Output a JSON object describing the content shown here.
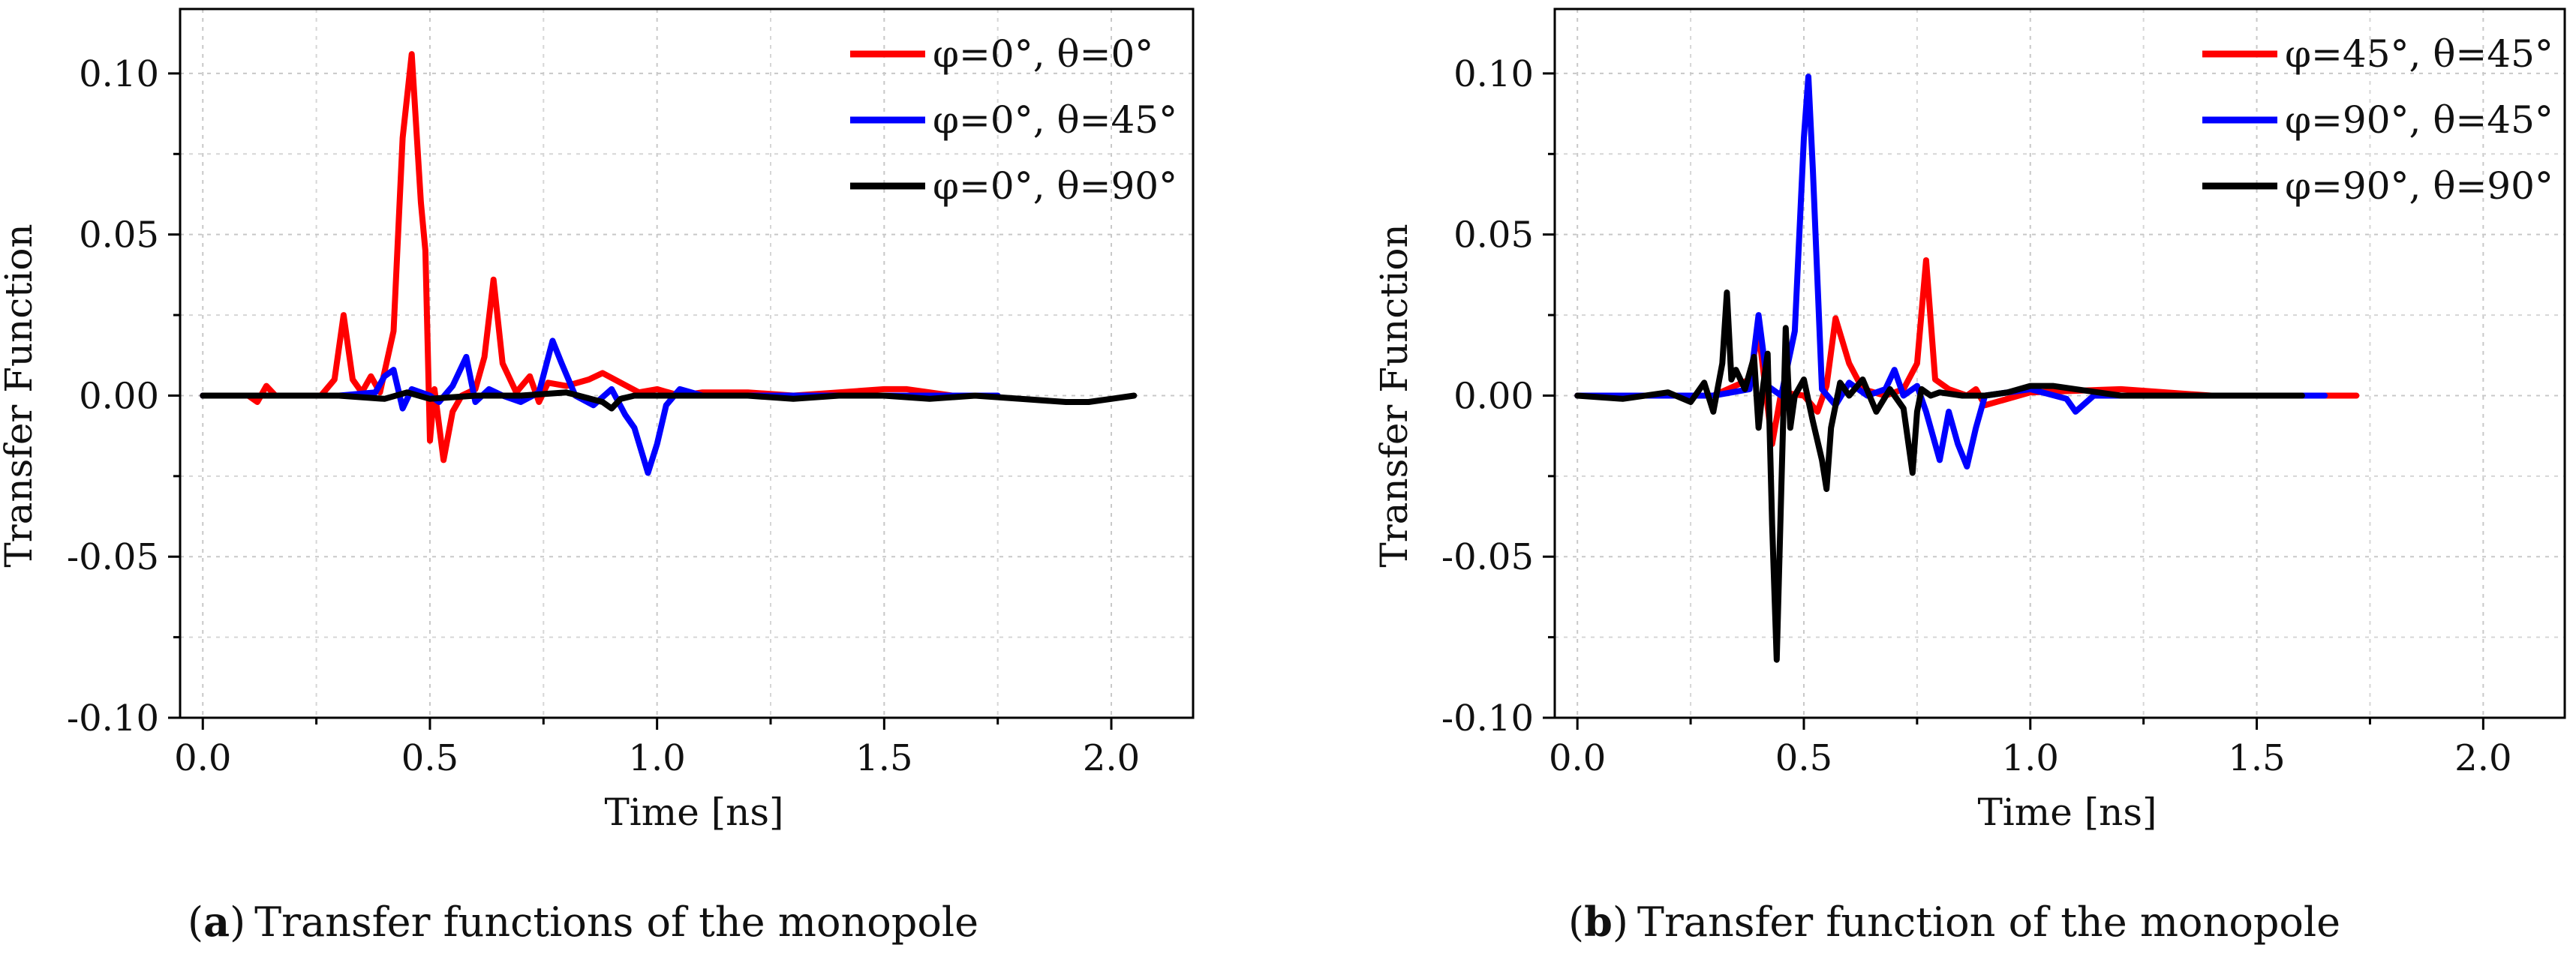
{
  "chart_data": [
    {
      "id": "a",
      "type": "line",
      "caption_letter": "a",
      "caption": "Transfer functions of the monopole",
      "xlabel": "Time [ns]",
      "ylabel": "Transfer Function",
      "xlim": [
        -0.05,
        2.18
      ],
      "ylim": [
        -0.1,
        0.12
      ],
      "xticks": [
        0.0,
        0.5,
        1.0,
        1.5,
        2.0
      ],
      "xtick_labels": [
        "0.0",
        "0.5",
        "1.0",
        "1.5",
        "2.0"
      ],
      "yticks": [
        -0.1,
        -0.05,
        0.0,
        0.05,
        0.1
      ],
      "ytick_labels": [
        "-0.10",
        "-0.05",
        "0.00",
        "0.05",
        "0.10"
      ],
      "grid": true,
      "legend_position": "top-right",
      "series": [
        {
          "name": "φ=0°, θ=0°",
          "color": "#ff0000",
          "x": [
            0,
            0.1,
            0.12,
            0.14,
            0.16,
            0.2,
            0.26,
            0.29,
            0.31,
            0.33,
            0.35,
            0.37,
            0.39,
            0.42,
            0.44,
            0.46,
            0.48,
            0.49,
            0.5,
            0.51,
            0.53,
            0.55,
            0.57,
            0.6,
            0.62,
            0.64,
            0.66,
            0.69,
            0.72,
            0.74,
            0.76,
            0.8,
            0.85,
            0.88,
            0.92,
            0.96,
            1.0,
            1.05,
            1.1,
            1.2,
            1.3,
            1.4,
            1.5,
            1.55,
            1.6,
            1.65
          ],
          "y": [
            0,
            0,
            -0.002,
            0.003,
            0,
            0,
            0,
            0.005,
            0.025,
            0.005,
            0.001,
            0.006,
            0.001,
            0.02,
            0.08,
            0.106,
            0.06,
            0.045,
            -0.014,
            0.002,
            -0.02,
            -0.005,
            0,
            0.002,
            0.012,
            0.036,
            0.01,
            0.001,
            0.006,
            -0.002,
            0.004,
            0.003,
            0.005,
            0.007,
            0.004,
            0.001,
            0.002,
            0,
            0.001,
            0.001,
            0,
            0.001,
            0.002,
            0.002,
            0.001,
            0
          ]
        },
        {
          "name": "φ=0°, θ=45°",
          "color": "#0000ff",
          "x": [
            0,
            0.3,
            0.38,
            0.4,
            0.42,
            0.44,
            0.46,
            0.5,
            0.52,
            0.55,
            0.58,
            0.6,
            0.63,
            0.66,
            0.7,
            0.74,
            0.77,
            0.79,
            0.82,
            0.86,
            0.9,
            0.93,
            0.95,
            0.98,
            1.0,
            1.02,
            1.05,
            1.1,
            1.2,
            1.3,
            1.5,
            1.7,
            1.75
          ],
          "y": [
            0,
            0,
            0.001,
            0.006,
            0.008,
            -0.004,
            0.002,
            0,
            -0.002,
            0.003,
            0.012,
            -0.002,
            0.002,
            0,
            -0.002,
            0.001,
            0.017,
            0.01,
            0,
            -0.003,
            0.002,
            -0.006,
            -0.01,
            -0.024,
            -0.015,
            -0.003,
            0.002,
            0,
            0,
            0,
            0,
            0,
            0
          ]
        },
        {
          "name": "φ=0°, θ=90°",
          "color": "#000000",
          "x": [
            0,
            0.3,
            0.4,
            0.45,
            0.5,
            0.6,
            0.7,
            0.8,
            0.88,
            0.9,
            0.92,
            0.95,
            1.0,
            1.1,
            1.2,
            1.3,
            1.4,
            1.5,
            1.6,
            1.7,
            1.8,
            1.9,
            1.95,
            2.0,
            2.05
          ],
          "y": [
            0,
            0,
            -0.001,
            0.001,
            -0.001,
            0,
            0,
            0.001,
            -0.002,
            -0.004,
            -0.001,
            0,
            0,
            0,
            0,
            -0.001,
            0,
            0,
            -0.001,
            0,
            -0.001,
            -0.002,
            -0.002,
            -0.001,
            0
          ]
        }
      ]
    },
    {
      "id": "b",
      "type": "line",
      "caption_letter": "b",
      "caption": "Transfer function of the monopole",
      "xlabel": "Time [ns]",
      "ylabel": "Transfer Function",
      "xlim": [
        -0.05,
        2.18
      ],
      "ylim": [
        -0.1,
        0.12
      ],
      "xticks": [
        0.0,
        0.5,
        1.0,
        1.5,
        2.0
      ],
      "xtick_labels": [
        "0.0",
        "0.5",
        "1.0",
        "1.5",
        "2.0"
      ],
      "yticks": [
        -0.1,
        -0.05,
        0.0,
        0.05,
        0.1
      ],
      "ytick_labels": [
        "-0.10",
        "-0.05",
        "0.00",
        "0.05",
        "0.10"
      ],
      "grid": true,
      "legend_position": "top-right",
      "series": [
        {
          "name": "φ=45°, θ=45°",
          "color": "#ff0000",
          "x": [
            0,
            0.3,
            0.38,
            0.4,
            0.43,
            0.45,
            0.5,
            0.53,
            0.55,
            0.57,
            0.6,
            0.63,
            0.68,
            0.72,
            0.75,
            0.77,
            0.79,
            0.82,
            0.86,
            0.88,
            0.9,
            1.0,
            1.2,
            1.4,
            1.6,
            1.72
          ],
          "y": [
            0,
            0,
            0.005,
            0.02,
            -0.015,
            0.001,
            0,
            -0.005,
            0.003,
            0.024,
            0.01,
            0.002,
            0,
            0.002,
            0.01,
            0.042,
            0.005,
            0.002,
            0,
            0.002,
            -0.003,
            0.001,
            0.002,
            0,
            0,
            0
          ]
        },
        {
          "name": "φ=90°, θ=45°",
          "color": "#0000ff",
          "x": [
            0,
            0.3,
            0.38,
            0.4,
            0.42,
            0.45,
            0.48,
            0.5,
            0.51,
            0.52,
            0.54,
            0.57,
            0.6,
            0.64,
            0.68,
            0.7,
            0.72,
            0.75,
            0.77,
            0.8,
            0.82,
            0.84,
            0.86,
            0.88,
            0.9,
            1.0,
            1.08,
            1.1,
            1.14,
            1.2,
            1.4,
            1.6,
            1.65
          ],
          "y": [
            0,
            0,
            0.002,
            0.025,
            0.003,
            0,
            0.02,
            0.08,
            0.099,
            0.07,
            0.002,
            -0.003,
            0.004,
            0,
            0.002,
            0.008,
            0,
            0.003,
            -0.005,
            -0.02,
            -0.005,
            -0.015,
            -0.022,
            -0.01,
            0,
            0.002,
            -0.001,
            -0.005,
            0,
            0,
            0,
            0,
            0
          ]
        },
        {
          "name": "φ=90°, θ=90°",
          "color": "#000000",
          "x": [
            0,
            0.1,
            0.2,
            0.25,
            0.28,
            0.3,
            0.32,
            0.33,
            0.34,
            0.35,
            0.37,
            0.39,
            0.4,
            0.41,
            0.42,
            0.43,
            0.44,
            0.45,
            0.46,
            0.47,
            0.48,
            0.5,
            0.52,
            0.54,
            0.55,
            0.56,
            0.58,
            0.6,
            0.63,
            0.66,
            0.69,
            0.72,
            0.74,
            0.75,
            0.76,
            0.78,
            0.8,
            0.85,
            0.9,
            0.95,
            1.0,
            1.05,
            1.1,
            1.2,
            1.3,
            1.4,
            1.5,
            1.6
          ],
          "y": [
            0,
            -0.001,
            0.001,
            -0.002,
            0.004,
            -0.005,
            0.01,
            0.032,
            0.005,
            0.008,
            0.002,
            0.012,
            -0.01,
            0.003,
            0.013,
            -0.04,
            -0.082,
            -0.03,
            0.021,
            -0.01,
            0,
            0.005,
            -0.008,
            -0.02,
            -0.029,
            -0.01,
            0.004,
            0,
            0.005,
            -0.005,
            0.002,
            -0.004,
            -0.024,
            -0.005,
            0.002,
            0,
            0.001,
            0,
            0,
            0.001,
            0.003,
            0.003,
            0.002,
            0,
            0,
            0,
            0,
            0
          ]
        }
      ]
    }
  ]
}
